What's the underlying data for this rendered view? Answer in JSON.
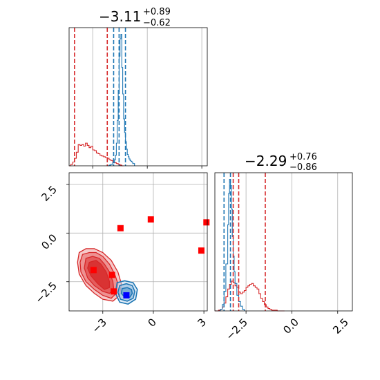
{
  "colors": {
    "red": "#d62728",
    "blue": "#1f77b4",
    "marker_red": "#ff0000",
    "marker_blue": "#0000ff",
    "grid": "#b0b0b0"
  },
  "chart_data": {
    "type": "corner",
    "grid": true,
    "panels": [
      {
        "id": "hist-param1",
        "type": "histogram",
        "title": {
          "median": "−3.11",
          "plus": "+0.89",
          "minus": "−0.62"
        },
        "xlim": [
          -4.3,
          3.3
        ],
        "quantile_lines": {
          "red": [
            -4.0,
            -2.2
          ],
          "blue": [
            -1.85,
            -1.55,
            -1.2
          ]
        },
        "series": [
          {
            "name": "",
            "color": "red",
            "x": [
              -4.3,
              -4.2,
              -4.1,
              -4.0,
              -3.9,
              -3.8,
              -3.7,
              -3.6,
              -3.5,
              -3.4,
              -3.3,
              -3.2,
              -3.1,
              -3.0,
              -2.9,
              -2.8,
              -2.7,
              -2.6,
              -2.5,
              -2.4,
              -2.3,
              -2.2,
              -2.1,
              -2.0,
              -1.9,
              -1.8,
              -1.7,
              -1.6,
              -1.5,
              -1.4,
              -1.3
            ],
            "counts": [
              0,
              2,
              5,
              10,
              18,
              28,
              27,
              28,
              26,
              30,
              27,
              24,
              26,
              21,
              20,
              17,
              16,
              14,
              13,
              12,
              11,
              10,
              8,
              7,
              5,
              4,
              3,
              2,
              1,
              0,
              0
            ]
          },
          {
            "name": "",
            "color": "blue",
            "x": [
              -2.2,
              -2.1,
              -2.0,
              -1.9,
              -1.8,
              -1.75,
              -1.7,
              -1.65,
              -1.6,
              -1.55,
              -1.5,
              -1.45,
              -1.4,
              -1.35,
              -1.3,
              -1.25,
              -1.2,
              -1.15,
              -1.1,
              -1.05,
              -1.0,
              -0.95,
              -0.9,
              -0.85,
              -0.8,
              -0.7
            ],
            "counts": [
              0,
              1,
              2,
              4,
              8,
              14,
              30,
              60,
              100,
              145,
              168,
              174,
              130,
              95,
              62,
              44,
              32,
              22,
              15,
              12,
              9,
              7,
              6,
              5,
              3,
              0
            ]
          }
        ]
      },
      {
        "id": "hist-param2",
        "type": "histogram",
        "title": {
          "median": "−2.29",
          "plus": "+0.76",
          "minus": "−0.86"
        },
        "xlim": [
          -4.2,
          3.3
        ],
        "quantile_lines": {
          "red": [
            -3.2,
            -2.9,
            -1.45
          ],
          "blue": [
            -3.7,
            -3.35
          ]
        },
        "series": [
          {
            "name": "",
            "color": "red",
            "x": [
              -4.2,
              -4.1,
              -4.0,
              -3.9,
              -3.8,
              -3.7,
              -3.6,
              -3.5,
              -3.4,
              -3.3,
              -3.2,
              -3.1,
              -3.0,
              -2.9,
              -2.8,
              -2.7,
              -2.6,
              -2.5,
              -2.4,
              -2.3,
              -2.2,
              -2.1,
              -2.0,
              -1.9,
              -1.8,
              -1.7,
              -1.6,
              -1.5,
              -1.4,
              -1.3,
              -1.2,
              -1.1,
              -1.0,
              -0.8,
              -0.6,
              -0.4
            ],
            "counts": [
              0,
              0,
              1,
              2,
              5,
              10,
              18,
              28,
              34,
              38,
              36,
              32,
              30,
              24,
              22,
              24,
              26,
              30,
              32,
              34,
              35,
              32,
              30,
              28,
              22,
              16,
              12,
              8,
              5,
              3,
              2,
              1,
              1,
              0,
              0,
              0
            ]
          },
          {
            "name": "",
            "color": "blue",
            "x": [
              -4.0,
              -3.9,
              -3.8,
              -3.7,
              -3.6,
              -3.5,
              -3.45,
              -3.4,
              -3.35,
              -3.3,
              -3.25,
              -3.2,
              -3.15,
              -3.1,
              -3.0,
              -2.9,
              -2.8,
              -2.7,
              -2.6
            ],
            "counts": [
              0,
              2,
              8,
              25,
              60,
              110,
              150,
              168,
              160,
              130,
              95,
              70,
              50,
              35,
              20,
              12,
              6,
              2,
              0
            ]
          }
        ]
      },
      {
        "id": "scatter-2d",
        "type": "scatter",
        "xlim": [
          -5.0,
          3.2
        ],
        "ylim": [
          -4.0,
          3.1
        ],
        "contours_red": [
          [
            [
              -4.4,
              -1.0
            ],
            [
              -4.0,
              -0.8
            ],
            [
              -3.5,
              -0.8
            ],
            [
              -3.0,
              -1.0
            ],
            [
              -2.5,
              -1.4
            ],
            [
              -2.1,
              -2.0
            ],
            [
              -1.9,
              -2.6
            ],
            [
              -2.0,
              -3.2
            ],
            [
              -2.4,
              -3.5
            ],
            [
              -3.0,
              -3.4
            ],
            [
              -3.5,
              -3.1
            ],
            [
              -4.0,
              -2.7
            ],
            [
              -4.4,
              -2.1
            ],
            [
              -4.5,
              -1.5
            ]
          ],
          [
            [
              -4.2,
              -1.1
            ],
            [
              -3.8,
              -1.0
            ],
            [
              -3.4,
              -1.0
            ],
            [
              -3.0,
              -1.2
            ],
            [
              -2.6,
              -1.6
            ],
            [
              -2.3,
              -2.1
            ],
            [
              -2.1,
              -2.6
            ],
            [
              -2.2,
              -3.1
            ],
            [
              -2.5,
              -3.35
            ],
            [
              -3.0,
              -3.2
            ],
            [
              -3.5,
              -2.9
            ],
            [
              -4.0,
              -2.5
            ],
            [
              -4.3,
              -2.0
            ],
            [
              -4.35,
              -1.5
            ]
          ],
          [
            [
              -4.0,
              -1.3
            ],
            [
              -3.6,
              -1.2
            ],
            [
              -3.2,
              -1.3
            ],
            [
              -2.9,
              -1.6
            ],
            [
              -2.6,
              -2.0
            ],
            [
              -2.4,
              -2.5
            ],
            [
              -2.35,
              -2.9
            ],
            [
              -2.6,
              -3.1
            ],
            [
              -3.0,
              -3.0
            ],
            [
              -3.5,
              -2.7
            ],
            [
              -3.9,
              -2.3
            ],
            [
              -4.1,
              -1.8
            ]
          ],
          [
            [
              -3.8,
              -1.5
            ],
            [
              -3.4,
              -1.4
            ],
            [
              -3.1,
              -1.6
            ],
            [
              -2.8,
              -2.0
            ],
            [
              -2.6,
              -2.5
            ],
            [
              -2.6,
              -2.8
            ],
            [
              -2.9,
              -2.9
            ],
            [
              -3.3,
              -2.6
            ],
            [
              -3.7,
              -2.2
            ],
            [
              -3.9,
              -1.8
            ]
          ]
        ],
        "contours_blue": [
          [
            [
              -2.15,
              -2.55
            ],
            [
              -1.7,
              -2.45
            ],
            [
              -1.2,
              -2.55
            ],
            [
              -0.95,
              -2.9
            ],
            [
              -1.05,
              -3.4
            ],
            [
              -1.5,
              -3.65
            ],
            [
              -2.0,
              -3.55
            ],
            [
              -2.25,
              -3.1
            ]
          ],
          [
            [
              -2.0,
              -2.7
            ],
            [
              -1.6,
              -2.6
            ],
            [
              -1.25,
              -2.7
            ],
            [
              -1.1,
              -3.0
            ],
            [
              -1.2,
              -3.35
            ],
            [
              -1.55,
              -3.5
            ],
            [
              -1.95,
              -3.4
            ],
            [
              -2.1,
              -3.05
            ]
          ],
          [
            [
              -1.85,
              -2.85
            ],
            [
              -1.55,
              -2.8
            ],
            [
              -1.3,
              -2.9
            ],
            [
              -1.25,
              -3.1
            ],
            [
              -1.4,
              -3.3
            ],
            [
              -1.7,
              -3.3
            ],
            [
              -1.9,
              -3.1
            ]
          ]
        ],
        "markers_red": [
          [
            -3.55,
            -1.9
          ],
          [
            -2.45,
            -2.15
          ],
          [
            -2.35,
            -3.0
          ],
          [
            -1.95,
            0.25
          ],
          [
            -0.15,
            0.7
          ],
          [
            2.85,
            -0.9
          ],
          [
            3.15,
            0.55
          ]
        ],
        "markers_blue": [
          [
            -1.6,
            -3.2
          ]
        ]
      }
    ],
    "ticks": {
      "scatter_y": [
        "2.5",
        "0.0",
        "−2.5"
      ],
      "scatter_y_values": [
        2.5,
        0.0,
        -2.5
      ],
      "scatter_x": [
        "−3",
        "0",
        "3"
      ],
      "scatter_x_values": [
        -3,
        0,
        3
      ],
      "hist2_x": [
        "−2.5",
        "0.0",
        "2.5"
      ],
      "hist2_x_values": [
        -2.5,
        0.0,
        2.5
      ]
    }
  }
}
